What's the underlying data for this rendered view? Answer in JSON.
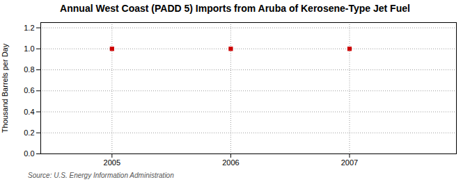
{
  "chart_data": {
    "type": "scatter",
    "title": "Annual West Coast (PADD 5) Imports from Aruba of Kerosene-Type Jet Fuel",
    "ylabel": "Thousand Barrels per Day",
    "source": "Source: U.S. Energy Information Administration",
    "x": [
      2005,
      2006,
      2007
    ],
    "values": [
      1.0,
      1.0,
      1.0
    ],
    "color": "#cc0000",
    "marker": "square",
    "xlim": [
      2004.4,
      2007.9
    ],
    "ylim": [
      0.0,
      1.25
    ],
    "xticks": [
      2005,
      2006,
      2007
    ],
    "yticks": [
      {
        "value": 0.0,
        "label": "0.0"
      },
      0.2,
      0.4,
      0.6,
      0.8,
      {
        "value": 1.0,
        "label": "1.0"
      },
      1.2
    ],
    "grid": true
  }
}
